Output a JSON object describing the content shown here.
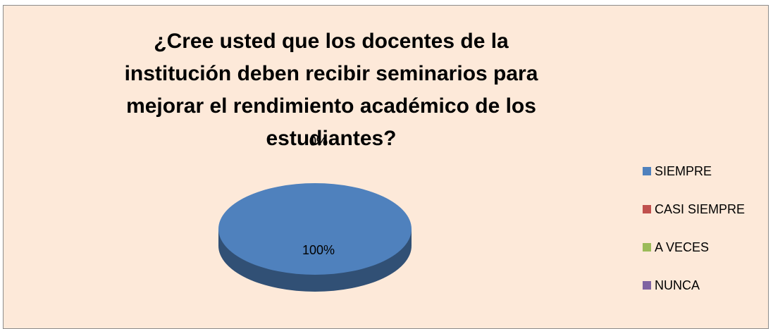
{
  "chart_data": {
    "type": "pie",
    "title": "¿Cree usted que los docentes de la institución deben recibir seminarios para mejorar el rendimiento académico de los estudiantes?",
    "categories": [
      "SIEMPRE",
      "CASI SIEMPRE",
      "A VECES",
      "NUNCA"
    ],
    "values": [
      100,
      0,
      0,
      0
    ],
    "value_labels": [
      "100%",
      "0%",
      "0%",
      "0%"
    ],
    "colors": [
      "#4f81bd",
      "#c0504d",
      "#9bbb59",
      "#8064a2"
    ],
    "legend": "right"
  }
}
